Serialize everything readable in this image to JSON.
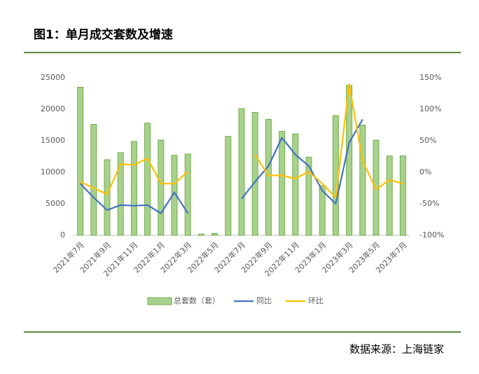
{
  "chart_data": {
    "type": "bar-line",
    "title": "图1：单月成交套数及增速",
    "source": "数据来源：上海链家",
    "categories": [
      "2021年7月",
      null,
      "2021年9月",
      null,
      "2021年11月",
      null,
      "2022年1月",
      null,
      "2022年3月",
      null,
      "2022年5月",
      null,
      "2022年7月",
      null,
      "2022年9月",
      null,
      "2022年11月",
      null,
      "2023年1月",
      null,
      "2023年3月",
      null,
      "2023年5月",
      null,
      "2023年7月"
    ],
    "series": [
      {
        "name": "总套数（套）",
        "type": "bar",
        "color": "#a9d18e",
        "edge_color": "#70ad47",
        "values": [
          23500,
          17600,
          12000,
          13100,
          14900,
          17800,
          15100,
          12700,
          12900,
          200,
          300,
          15700,
          20100,
          19500,
          18400,
          16500,
          16100,
          12400,
          7900,
          19000,
          23800,
          17500,
          15100,
          12600,
          12600
        ]
      },
      {
        "name": "同比",
        "type": "line",
        "axis": "y2",
        "color": "#4472c4",
        "values": [
          -18,
          -40,
          -60,
          -52,
          -53,
          -52,
          -65,
          -32,
          -65,
          null,
          null,
          null,
          -42,
          -15,
          10,
          55,
          28,
          10,
          -29,
          -50,
          47,
          84,
          null,
          null,
          null
        ]
      },
      {
        "name": "环比",
        "type": "line",
        "axis": "y2",
        "color": "#ffc000",
        "values": [
          -15,
          -25,
          -35,
          13,
          12,
          22,
          -18,
          -18,
          1,
          null,
          null,
          null,
          null,
          28,
          -5,
          -5,
          -10,
          1,
          -18,
          -40,
          140,
          18,
          -27,
          -12,
          -18
        ]
      }
    ],
    "ylim": [
      0,
      25000
    ],
    "yticks": [
      0,
      5000,
      10000,
      15000,
      20000,
      25000
    ],
    "y2lim": [
      -100,
      150
    ],
    "y2ticks": [
      {
        "value": -100,
        "label": "-100%"
      },
      {
        "value": -50,
        "label": "-50%"
      },
      {
        "value": 0,
        "label": "0%"
      },
      {
        "value": 50,
        "label": "50%"
      },
      {
        "value": 100,
        "label": "100%"
      },
      {
        "value": 150,
        "label": "150%"
      }
    ],
    "grid": false,
    "legend": "bottom"
  }
}
